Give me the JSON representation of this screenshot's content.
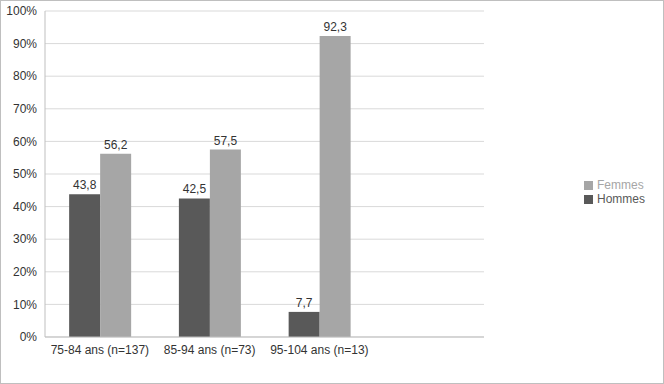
{
  "chart_data": {
    "type": "bar",
    "categories": [
      "75-84 ans (n=137)",
      "85-94 ans (n=73)",
      "95-104 ans (n=13)",
      null
    ],
    "series": [
      {
        "name": "Hommes",
        "color": "#595959",
        "values": [
          43.8,
          42.5,
          7.7,
          null
        ],
        "value_labels": [
          "43,8",
          "42,5",
          "7,7",
          null
        ]
      },
      {
        "name": "Femmes",
        "color": "#a6a6a6",
        "values": [
          56.2,
          57.5,
          92.3,
          null
        ],
        "value_labels": [
          "56,2",
          "57,5",
          "92,3",
          null
        ]
      }
    ],
    "ylim": [
      0,
      100
    ],
    "yticks": [
      {
        "value": 0,
        "label": "0%"
      },
      {
        "value": 10,
        "label": "10%"
      },
      {
        "value": 20,
        "label": "20%"
      },
      {
        "value": 30,
        "label": "30%"
      },
      {
        "value": 40,
        "label": "40%"
      },
      {
        "value": 50,
        "label": "50%"
      },
      {
        "value": 60,
        "label": "60%"
      },
      {
        "value": 70,
        "label": "70%"
      },
      {
        "value": 80,
        "label": "80%"
      },
      {
        "value": 90,
        "label": "90%"
      },
      {
        "value": 100,
        "label": "100%"
      }
    ],
    "grid": true,
    "legend": "right",
    "data_labels": true
  }
}
